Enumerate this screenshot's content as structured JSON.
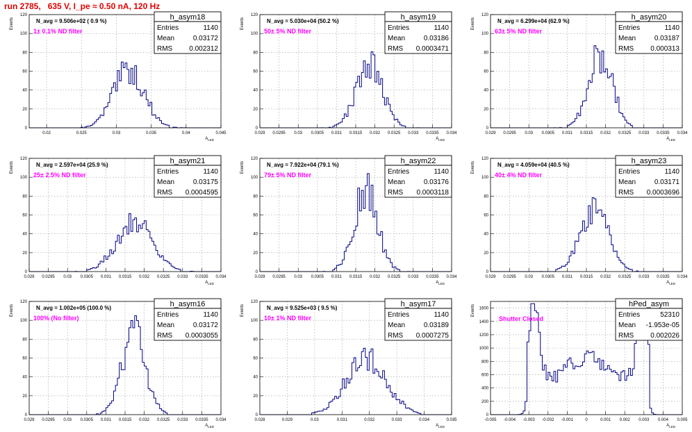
{
  "title": "run 2785,   635 V, I_pe ≈ 0.50 nA, 120 Hz",
  "colors": {
    "title": "#e00000",
    "hist": "#000080",
    "filter": "#ff00ff",
    "grid": "#9a9a9a"
  },
  "chart_data": [
    {
      "type": "bar",
      "name": "h_asym18",
      "n_avg": "N_avg = 9.506e+02 ( 0.9 %)",
      "filter": "1± 0.1% ND filter",
      "stats": {
        "entries": "1140",
        "mean": "0.03172",
        "rms": "0.002312"
      },
      "xlim": [
        0.0175,
        0.045
      ],
      "ylim": [
        0,
        120
      ],
      "xticks": [
        "0.02",
        "0.025",
        "0.03",
        "0.035",
        "0.04",
        "0.045"
      ],
      "yticks": [
        "0",
        "20",
        "40",
        "60",
        "80",
        "100",
        "120"
      ],
      "ylabel": "Events",
      "xlabel": "A_LED",
      "peak_x": 0.0318,
      "peak_y": 63,
      "sigma": 0.0022
    },
    {
      "type": "bar",
      "name": "h_asym19",
      "n_avg": "N_avg = 5.030e+04 (50.2 %)",
      "filter": "50± 5% ND filter",
      "stats": {
        "entries": "1140",
        "mean": "0.03186",
        "rms": "0.0003471"
      },
      "xlim": [
        0.029,
        0.034
      ],
      "ylim": [
        0,
        120
      ],
      "xticks": [
        "0.029",
        "0.0295",
        "0.03",
        "0.0305",
        "0.031",
        "0.0315",
        "0.032",
        "0.0325",
        "0.033",
        "0.0335",
        "0.034"
      ],
      "yticks": [
        "0",
        "20",
        "40",
        "60",
        "80",
        "100",
        "120"
      ],
      "ylabel": "Events",
      "xlabel": "A_LED",
      "peak_x": 0.03186,
      "peak_y": 70,
      "sigma": 0.00034
    },
    {
      "type": "bar",
      "name": "h_asym20",
      "n_avg": "N_avg = 6.299e+04 (62.9 %)",
      "filter": "63± 5% ND filter",
      "stats": {
        "entries": "1140",
        "mean": "0.03187",
        "rms": "0.000313"
      },
      "xlim": [
        0.029,
        0.034
      ],
      "ylim": [
        0,
        120
      ],
      "xticks": [
        "0.029",
        "0.0295",
        "0.03",
        "0.0305",
        "0.031",
        "0.0315",
        "0.032",
        "0.0325",
        "0.033",
        "0.0335",
        "0.034"
      ],
      "yticks": [
        "0",
        "20",
        "40",
        "60",
        "80",
        "100",
        "120"
      ],
      "ylabel": "Events",
      "xlabel": "A_LED",
      "peak_x": 0.03187,
      "peak_y": 80,
      "sigma": 0.00031
    },
    {
      "type": "bar",
      "name": "h_asym21",
      "n_avg": "N_avg = 2.597e+04 (25.9 %)",
      "filter": "25± 2.5% ND filter",
      "stats": {
        "entries": "1140",
        "mean": "0.03175",
        "rms": "0.0004595"
      },
      "xlim": [
        0.029,
        0.034
      ],
      "ylim": [
        0,
        120
      ],
      "xticks": [
        "0.029",
        "0.0295",
        "0.03",
        "0.0305",
        "0.031",
        "0.0315",
        "0.032",
        "0.0325",
        "0.033",
        "0.0335",
        "0.034"
      ],
      "yticks": [
        "0",
        "20",
        "40",
        "60",
        "80",
        "100",
        "120"
      ],
      "ylabel": "Events",
      "xlabel": "A_LED",
      "peak_x": 0.03175,
      "peak_y": 57,
      "sigma": 0.00046
    },
    {
      "type": "bar",
      "name": "h_asym22",
      "n_avg": "N_avg = 7.922e+04 (79.1 %)",
      "filter": "79± 5% ND filter",
      "stats": {
        "entries": "1140",
        "mean": "0.03176",
        "rms": "0.0003118"
      },
      "xlim": [
        0.029,
        0.034
      ],
      "ylim": [
        0,
        120
      ],
      "xticks": [
        "0.029",
        "0.0295",
        "0.03",
        "0.0305",
        "0.031",
        "0.0315",
        "0.032",
        "0.0325",
        "0.033",
        "0.0335",
        "0.034"
      ],
      "yticks": [
        "0",
        "20",
        "40",
        "60",
        "80",
        "100",
        "120"
      ],
      "ylabel": "Events",
      "xlabel": "A_LED",
      "peak_x": 0.03176,
      "peak_y": 88,
      "sigma": 0.00031
    },
    {
      "type": "bar",
      "name": "h_asym23",
      "n_avg": "N_avg = 4.059e+04 (40.5 %)",
      "filter": "40± 4% ND filter",
      "stats": {
        "entries": "1140",
        "mean": "0.03171",
        "rms": "0.0003696"
      },
      "xlim": [
        0.029,
        0.034
      ],
      "ylim": [
        0,
        120
      ],
      "xticks": [
        "0.029",
        "0.0295",
        "0.03",
        "0.0305",
        "0.031",
        "0.0315",
        "0.032",
        "0.0325",
        "0.033",
        "0.0335",
        "0.034"
      ],
      "yticks": [
        "0",
        "20",
        "40",
        "60",
        "80",
        "100",
        "120"
      ],
      "ylabel": "Events",
      "xlabel": "A_LED",
      "peak_x": 0.03171,
      "peak_y": 70,
      "sigma": 0.00037
    },
    {
      "type": "bar",
      "name": "h_asym16",
      "n_avg": "N_avg = 1.002e+05 (100.0 %)",
      "filter": "100% (No filter)",
      "stats": {
        "entries": "1140",
        "mean": "0.03172",
        "rms": "0.0003055"
      },
      "xlim": [
        0.029,
        0.034
      ],
      "ylim": [
        0,
        120
      ],
      "xticks": [
        "0.029",
        "0.0295",
        "0.03",
        "0.0305",
        "0.031",
        "0.0315",
        "0.032",
        "0.0325",
        "0.033",
        "0.0335",
        "0.034"
      ],
      "yticks": [
        "0",
        "20",
        "40",
        "60",
        "80",
        "100",
        "120"
      ],
      "ylabel": "Events",
      "xlabel": "A_LED",
      "peak_x": 0.03172,
      "peak_y": 88,
      "sigma": 0.00031
    },
    {
      "type": "bar",
      "name": "h_asym17",
      "n_avg": "N_avg = 9.525e+03 ( 9.5 %)",
      "filter": "10± 1% ND filter",
      "stats": {
        "entries": "1140",
        "mean": "0.03189",
        "rms": "0.0007275"
      },
      "xlim": [
        0.028,
        0.035
      ],
      "ylim": [
        0,
        120
      ],
      "xticks": [
        "0.028",
        "0.029",
        "0.03",
        "0.031",
        "0.032",
        "0.033",
        "0.034",
        "0.035"
      ],
      "yticks": [
        "0",
        "20",
        "40",
        "60",
        "80",
        "100",
        "120"
      ],
      "ylabel": "Events",
      "xlabel": "A_LED",
      "peak_x": 0.03189,
      "peak_y": 64,
      "sigma": 0.00072
    },
    {
      "type": "bar",
      "name": "hPed_asym",
      "n_avg": "",
      "filter": "Shutter Closed",
      "stats": {
        "entries": "52310",
        "mean": "-1.953e-05",
        "rms": "0.002026"
      },
      "xlim": [
        -0.005,
        0.005
      ],
      "ylim": [
        0,
        1700
      ],
      "xticks": [
        "-0.005",
        "-0.004",
        "-0.003",
        "-0.002",
        "-0.001",
        "0",
        "0.001",
        "0.002",
        "0.003",
        "0.004",
        "0.005"
      ],
      "yticks": [
        "0",
        "200",
        "400",
        "600",
        "800",
        "1000",
        "1200",
        "1400",
        "1600"
      ],
      "ylabel": "Events",
      "xlabel": "A_LED",
      "peak_x": 0.0,
      "peak_y": 1560,
      "sigma": 0.002
    }
  ]
}
